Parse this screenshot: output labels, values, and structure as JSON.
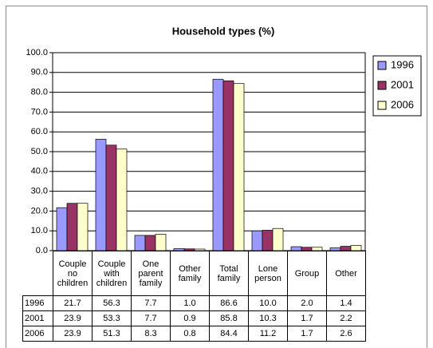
{
  "chart_data": {
    "type": "bar",
    "title": "Household types (%)",
    "categories": [
      "Couple no children",
      "Couple with children",
      "One parent family",
      "Other family",
      "Total family",
      "Lone person",
      "Group",
      "Other"
    ],
    "series": [
      {
        "name": "1996",
        "color": "#9999ff",
        "values": [
          21.7,
          56.3,
          7.7,
          1.0,
          86.6,
          10.0,
          2.0,
          1.4
        ],
        "value_labels": [
          "21.7",
          "56.3",
          "7.7",
          "1.0",
          "86.6",
          "10.0",
          "2.0",
          "1.4"
        ]
      },
      {
        "name": "2001",
        "color": "#993366",
        "values": [
          23.9,
          53.3,
          7.7,
          0.9,
          85.8,
          10.3,
          1.7,
          2.2
        ],
        "value_labels": [
          "23.9",
          "53.3",
          "7.7",
          "0.9",
          "85.8",
          "10.3",
          "1.7",
          "2.2"
        ]
      },
      {
        "name": "2006",
        "color": "#ffffcc",
        "values": [
          23.9,
          51.3,
          8.3,
          0.8,
          84.4,
          11.2,
          1.7,
          2.6
        ],
        "value_labels": [
          "23.9",
          "51.3",
          "8.3",
          "0.8",
          "84.4",
          "11.2",
          "1.7",
          "2.6"
        ]
      }
    ],
    "ylim": [
      0,
      100
    ],
    "yticks": [
      {
        "value": 0,
        "label": "0.0"
      },
      {
        "value": 10,
        "label": "10.0"
      },
      {
        "value": 20,
        "label": "20.0"
      },
      {
        "value": 30,
        "label": "30.0"
      },
      {
        "value": 40,
        "label": "40.0"
      },
      {
        "value": 50,
        "label": "50.0"
      },
      {
        "value": 60,
        "label": "60.0"
      },
      {
        "value": 70,
        "label": "70.0"
      },
      {
        "value": 80,
        "label": "80.0"
      },
      {
        "value": 90,
        "label": "90.0"
      },
      {
        "value": 100,
        "label": "100.0"
      }
    ],
    "grid": true,
    "legend": "right"
  }
}
